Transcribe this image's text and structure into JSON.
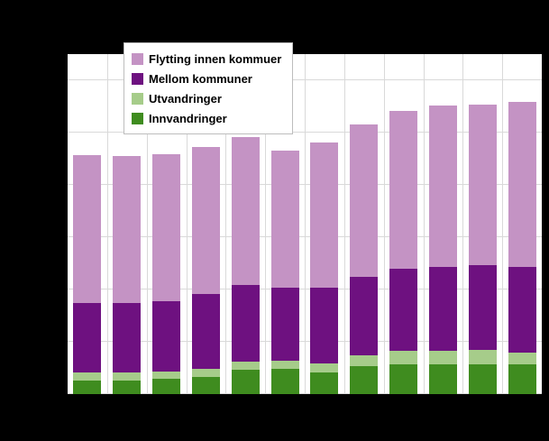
{
  "canvas": {
    "background": "#000000",
    "plot_background": "#ffffff",
    "gridline_color": "#d9d9d9"
  },
  "legend": {
    "position": "top-left",
    "items": [
      {
        "label": "Flytting innen kommuer",
        "color": "#c493c4"
      },
      {
        "label": "Mellom kommuner",
        "color": "#6e1180"
      },
      {
        "label": "Utvandringer",
        "color": "#a6cc8a"
      },
      {
        "label": "Innvandringer",
        "color": "#3f8c1f"
      }
    ]
  },
  "chart_data": {
    "type": "bar",
    "stacked": true,
    "title": "",
    "xlabel": "",
    "ylabel": "",
    "axis_tick_labels_visible": false,
    "categories": [
      "",
      "",
      "",
      "",
      "",
      "",
      "",
      "",
      "",
      "",
      "",
      ""
    ],
    "series": [
      {
        "name": "Innvandringer",
        "color": "#3f8c1f",
        "values": [
          13000,
          13000,
          15000,
          16000,
          23000,
          24000,
          21000,
          27000,
          28000,
          28000,
          28000,
          28000
        ]
      },
      {
        "name": "Utvandringer",
        "color": "#a6cc8a",
        "values": [
          8000,
          8000,
          7000,
          8000,
          8000,
          8000,
          9000,
          10000,
          13000,
          13000,
          14000,
          11000
        ]
      },
      {
        "name": "Mellom kommuner",
        "color": "#6e1180",
        "values": [
          66000,
          66000,
          67000,
          71000,
          73000,
          70000,
          72000,
          75000,
          78000,
          80000,
          81000,
          82000
        ]
      },
      {
        "name": "Flytting innen kommuer",
        "color": "#c493c4",
        "values": [
          141000,
          140000,
          140000,
          140000,
          141000,
          131000,
          138000,
          145000,
          150000,
          154000,
          153000,
          157000
        ]
      }
    ],
    "ylim": [
      0,
      324000
    ],
    "grid": true,
    "gridline_values": [
      50000,
      100000,
      150000,
      200000,
      250000,
      300000
    ],
    "legend_position": "top-left"
  }
}
